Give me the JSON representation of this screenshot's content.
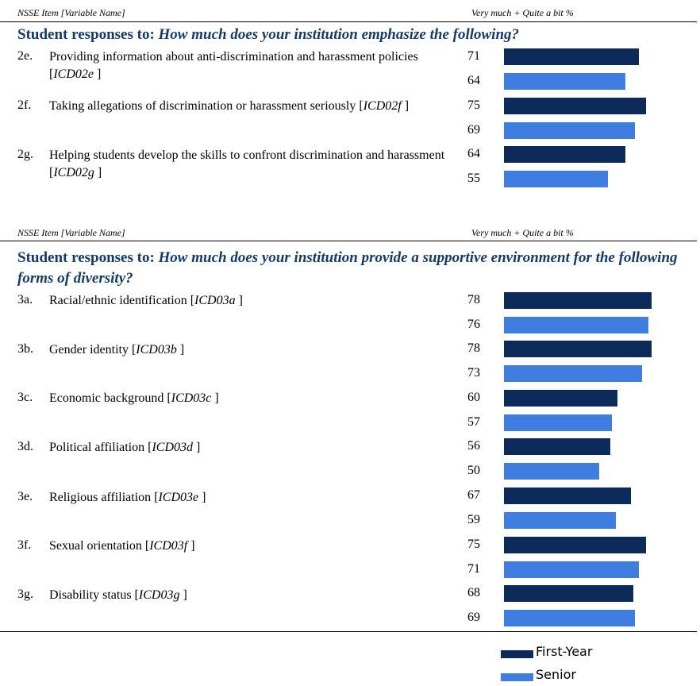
{
  "colors": {
    "first_year": "#0d2b5a",
    "senior": "#3f7ee0",
    "title": "#123a6b"
  },
  "column_headers": {
    "item": "NSSE Item [Variable Name]",
    "pct": "Very much + Quite a bit %"
  },
  "sections": [
    {
      "prefix": "Student responses to:",
      "question": "How much does your institution emphasize the following?",
      "items": [
        {
          "code": "2e.",
          "text": "Providing information about anti-discrimination and harassment policies [",
          "var": "ICD02e",
          "close": "]"
        },
        {
          "code": "2f.",
          "text": "Taking allegations of discrimination or harassment seriously [",
          "var": "ICD02f",
          "close": "]"
        },
        {
          "code": "2g.",
          "text": "Helping students develop the skills to confront discrimination and harassment [",
          "var": "ICD02g",
          "close": "]"
        }
      ]
    },
    {
      "prefix": "Student responses to:",
      "question": "How much does your institution provide a supportive environment for the following forms of diversity?",
      "items": [
        {
          "code": "3a.",
          "text": "Racial/ethnic identification [",
          "var": "ICD03a",
          "close": "]"
        },
        {
          "code": "3b.",
          "text": "Gender identity [",
          "var": "ICD03b",
          "close": "]"
        },
        {
          "code": "3c.",
          "text": "Economic background [",
          "var": "ICD03c",
          "close": "]"
        },
        {
          "code": "3d.",
          "text": "Political affiliation [",
          "var": "ICD03d",
          "close": "]"
        },
        {
          "code": "3e.",
          "text": "Religious affiliation [",
          "var": "ICD03e",
          "close": "]"
        },
        {
          "code": "3f.",
          "text": "Sexual orientation [",
          "var": "ICD03f",
          "close": "]"
        },
        {
          "code": "3g.",
          "text": "Disability status [",
          "var": "ICD03g",
          "close": "]"
        }
      ]
    }
  ],
  "legend": {
    "first_year": "First-Year",
    "senior": "Senior"
  },
  "chart_data": {
    "type": "bar",
    "orientation": "horizontal",
    "categories": [
      "2e.",
      "2f.",
      "2g.",
      "3a.",
      "3b.",
      "3c.",
      "3d.",
      "3e.",
      "3f.",
      "3g."
    ],
    "series": [
      {
        "name": "First-Year",
        "values": [
          71,
          75,
          64,
          78,
          78,
          60,
          56,
          67,
          75,
          68
        ]
      },
      {
        "name": "Senior",
        "values": [
          64,
          69,
          55,
          76,
          73,
          57,
          50,
          59,
          71,
          69
        ]
      }
    ],
    "xlim": [
      0,
      100
    ],
    "grid": false,
    "legend_position": "bottom-right"
  }
}
